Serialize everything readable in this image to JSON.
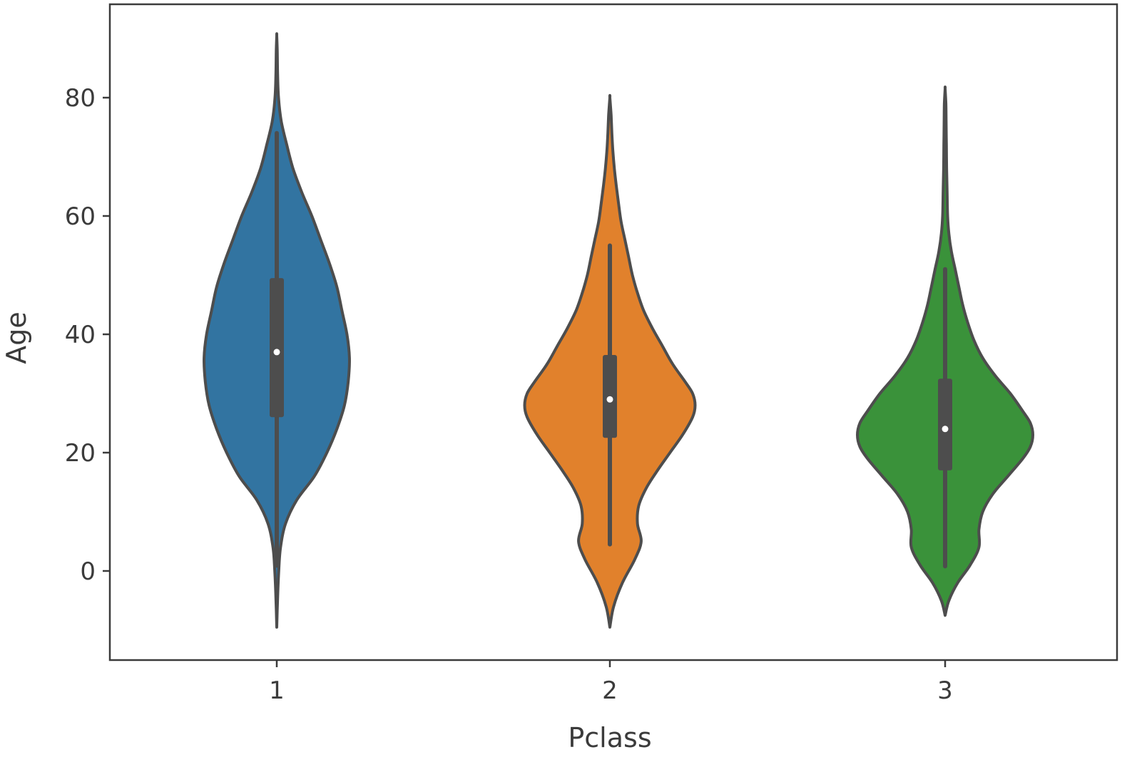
{
  "chart_data": {
    "type": "violin",
    "title": "",
    "xlabel": "Pclass",
    "ylabel": "Age",
    "ylim": [
      -14.5,
      95.5
    ],
    "yticks": [
      0,
      20,
      40,
      60,
      80
    ],
    "categories": [
      "1",
      "2",
      "3"
    ],
    "grid": false,
    "legend": "none",
    "stroke_color": "#4d4d4d",
    "series": [
      {
        "category": "1",
        "color": "#3274a1",
        "min": 0.9,
        "q1": 26,
        "median": 37,
        "q3": 49.5,
        "max": 74,
        "extent": [
          -9.5,
          90.5
        ],
        "density": [
          [
            -9.5,
            0
          ],
          [
            -5,
            0.3
          ],
          [
            0,
            0.8
          ],
          [
            4,
            1.5
          ],
          [
            8,
            3.5
          ],
          [
            12,
            8
          ],
          [
            16,
            15
          ],
          [
            20,
            20
          ],
          [
            24,
            24
          ],
          [
            28,
            27
          ],
          [
            32,
            28.5
          ],
          [
            36,
            29
          ],
          [
            40,
            28
          ],
          [
            44,
            26
          ],
          [
            48,
            24
          ],
          [
            52,
            21
          ],
          [
            56,
            17.5
          ],
          [
            60,
            14
          ],
          [
            64,
            10
          ],
          [
            68,
            6.5
          ],
          [
            72,
            4
          ],
          [
            76,
            1.8
          ],
          [
            80,
            0.7
          ],
          [
            84,
            0.35
          ],
          [
            88,
            0.2
          ],
          [
            90.5,
            0
          ]
        ]
      },
      {
        "category": "2",
        "color": "#e1812c",
        "min": 4.5,
        "q1": 22.5,
        "median": 29,
        "q3": 36.5,
        "max": 55,
        "extent": [
          -9.5,
          80
        ]
      },
      {
        "category": "3",
        "color": "#3a923a",
        "min": 0.8,
        "q1": 17,
        "median": 24,
        "q3": 32.5,
        "max": 51,
        "extent": [
          -7.5,
          81.5
        ]
      }
    ]
  }
}
